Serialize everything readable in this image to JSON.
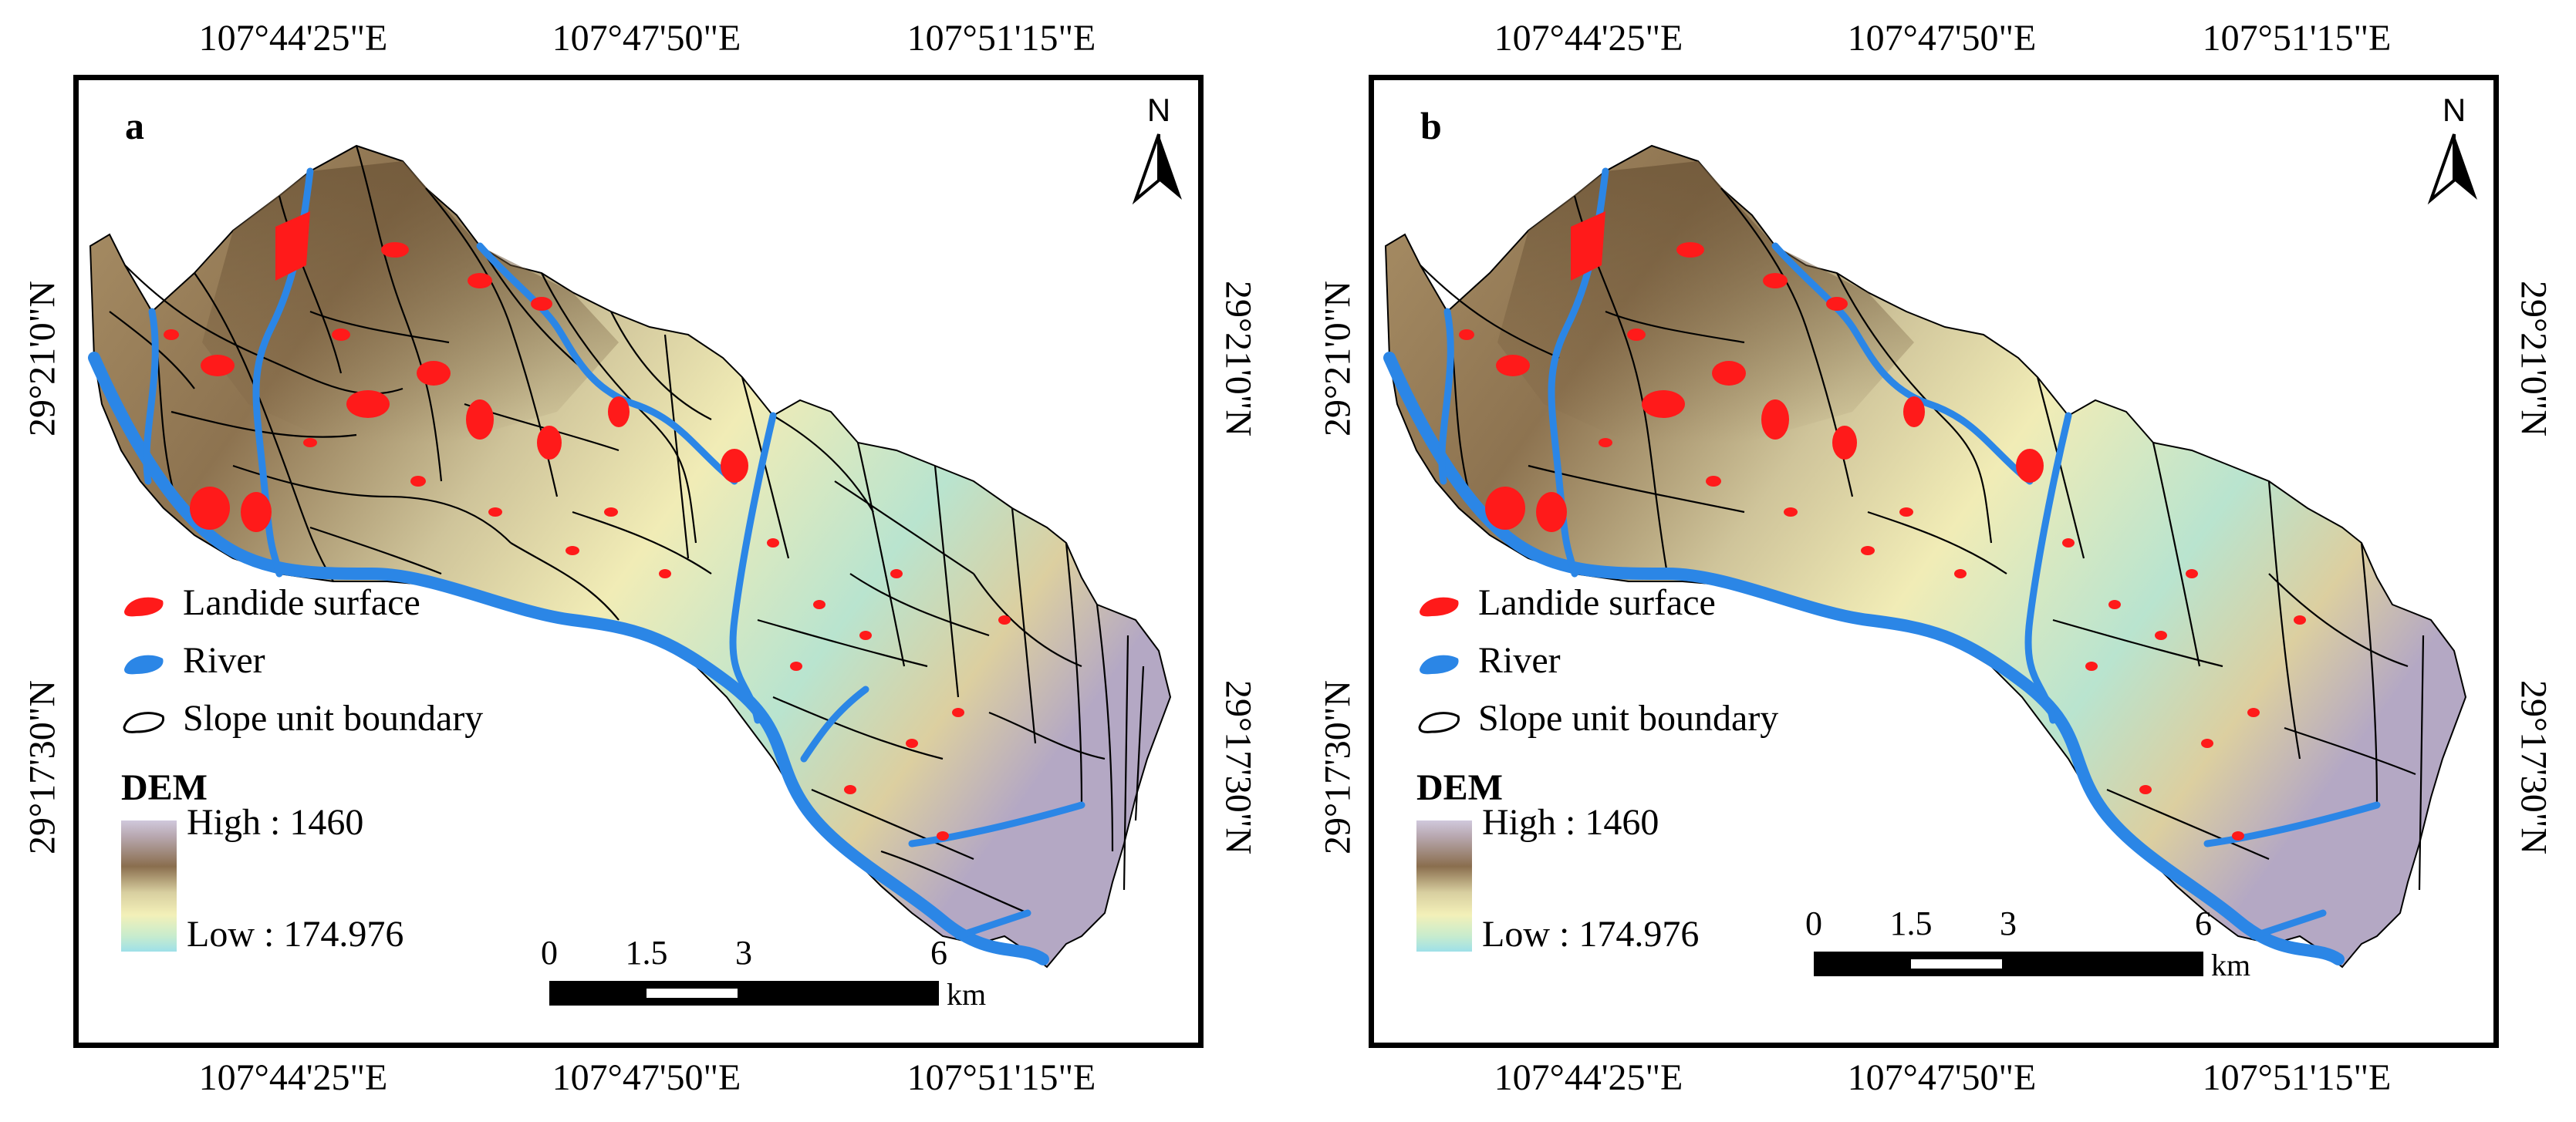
{
  "panels": [
    {
      "label": "a",
      "lon_ticks": [
        "107°44'25\"E",
        "107°47'50\"E",
        "107°51'15\"E"
      ],
      "lat_ticks": [
        "29°21'0\"N",
        "29°17'30\"N"
      ],
      "north_label": "N",
      "legend": {
        "landslide": "Landide surface",
        "river": "River",
        "slope_unit": "Slope unit  boundary",
        "dem_title": "DEM",
        "dem_high": "High : 1460",
        "dem_low": "Low : 174.976"
      },
      "scale": {
        "ticks": [
          "0",
          "1.5",
          "3",
          "6"
        ],
        "unit": "km"
      },
      "landslide_count": "many",
      "slope_units": "dense"
    },
    {
      "label": "b",
      "lon_ticks": [
        "107°44'25\"E",
        "107°47'50\"E",
        "107°51'15\"E"
      ],
      "lat_ticks": [
        "29°21'0\"N",
        "29°17'30\"N"
      ],
      "north_label": "N",
      "legend": {
        "landslide": "Landide surface",
        "river": "River",
        "slope_unit": "Slope unit  boundary",
        "dem_title": "DEM",
        "dem_high": "High : 1460",
        "dem_low": "Low : 174.976"
      },
      "scale": {
        "ticks": [
          "0",
          "1.5",
          "3",
          "6"
        ],
        "unit": "km"
      },
      "landslide_count": "many",
      "slope_units": "coarse"
    }
  ],
  "colors": {
    "landslide": "#ff1a1a",
    "river": "#2b86e6",
    "boundary": "#000000",
    "dem_high": "#c9bfd6",
    "dem_mid": "#8a6e4e",
    "dem_low": "#a6e3e3"
  }
}
